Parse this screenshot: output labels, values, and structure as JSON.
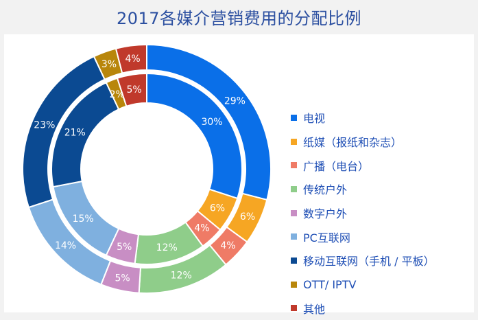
{
  "title": "2017各媒介营销费用的分配比例",
  "chart_data": {
    "type": "donut",
    "title": "2017各媒介营销费用的分配比例",
    "categories": [
      "电视",
      "纸媒（报纸和杂志）",
      "广播（电台）",
      "传统户外",
      "数字户外",
      "PC互联网",
      "移动互联网（手机 / 平板）",
      "OTT/ IPTV",
      "其他"
    ],
    "colors": [
      "#0a6fe8",
      "#f6a623",
      "#ef7b66",
      "#8fcd8a",
      "#c88ec4",
      "#7fb0df",
      "#0b4a92",
      "#b8860b",
      "#c0392b"
    ],
    "series": [
      {
        "ring": "outer",
        "values": [
          29,
          6,
          4,
          12,
          5,
          14,
          23,
          3,
          4
        ],
        "labels": [
          "29%",
          "6%",
          "4%",
          "12%",
          "5%",
          "14%",
          "23%",
          "3%",
          "4%"
        ]
      },
      {
        "ring": "inner",
        "values": [
          30,
          6,
          4,
          12,
          5,
          15,
          21,
          2,
          5
        ],
        "labels": [
          "30%",
          "6%",
          "4%",
          "12%",
          "5%",
          "15%",
          "21%",
          "2%",
          "5%"
        ]
      }
    ],
    "legend_position": "right"
  }
}
